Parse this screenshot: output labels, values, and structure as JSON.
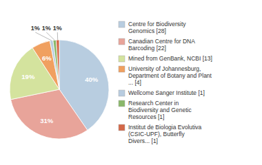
{
  "chart_data": {
    "type": "pie",
    "categories": [
      "Centre for Biodiversity\nGenomics [28]",
      "Canadian Centre for DNA\nBarcoding [22]",
      "Mined from GenBank, NCBI [13]",
      "University of Johannesburg,\nDepartment of Botany and Plant\n... [4]",
      "Wellcome Sanger Institute [1]",
      "Research Center in\nBiodiversity and Genetic\nResources [1]",
      "Institut de Biologia Evolutiva\n(CSIC-UPF), Butterfly\nDivers... [1]"
    ],
    "values": [
      40,
      31,
      19,
      6,
      1,
      1,
      1
    ],
    "value_labels": [
      "40%",
      "31%",
      "19%",
      "6%",
      "1%",
      "1%",
      "1%"
    ],
    "colors": [
      "#b8cde0",
      "#e8a49a",
      "#d4e39e",
      "#f0a060",
      "#b8cce0",
      "#8ab86a",
      "#d46848"
    ],
    "data_labels": true,
    "legend": "right"
  }
}
